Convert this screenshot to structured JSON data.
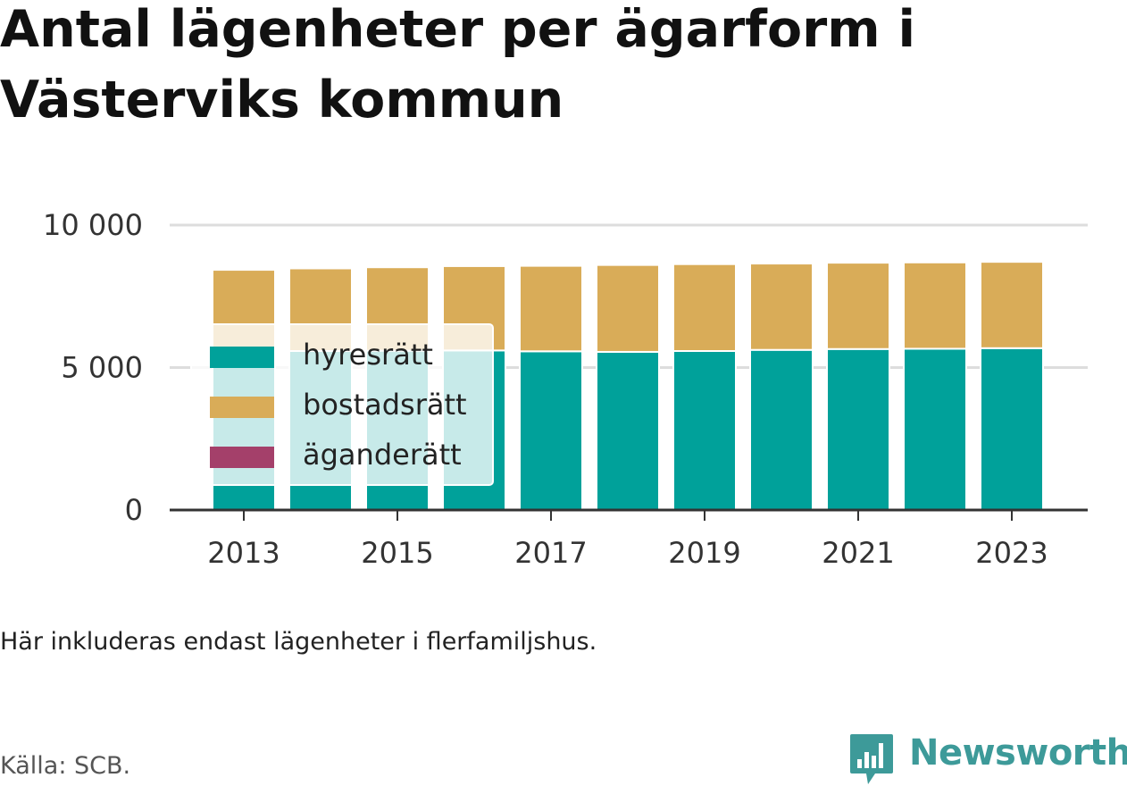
{
  "page": {
    "title": "Antal lägenheter per ägarform i Västerviks kommun",
    "note": "Här inkluderas endast lägenheter i flerfamiljshus.",
    "source": "Källa: SCB.",
    "brand": "Newsworthy"
  },
  "colors": {
    "hyresratt": "#00a19a",
    "bostadsratt": "#d9ac58",
    "aganderatt": "#a4406a",
    "grid": "#dddddd",
    "axis": "#333333",
    "brand": "#3d9a99"
  },
  "chart_data": {
    "type": "bar",
    "stacked": true,
    "title": "Antal lägenheter per ägarform i Västerviks kommun",
    "x": [
      2013,
      2014,
      2015,
      2016,
      2017,
      2018,
      2019,
      2020,
      2021,
      2022,
      2023
    ],
    "x_tick_labels": [
      "2013",
      "2015",
      "2017",
      "2019",
      "2021",
      "2023"
    ],
    "y_tick_labels": [
      "0",
      "5 000",
      "10 000"
    ],
    "y_ticks": [
      0,
      5000,
      10000
    ],
    "ylim": [
      0,
      10000
    ],
    "grid": true,
    "legend_position": "inside-left",
    "series": [
      {
        "name": "hyresrätt",
        "color": "#00a19a",
        "values": [
          5560,
          5580,
          5590,
          5600,
          5570,
          5550,
          5580,
          5620,
          5650,
          5660,
          5680
        ]
      },
      {
        "name": "bostadsrätt",
        "color": "#d9ac58",
        "values": [
          2870,
          2900,
          2930,
          2960,
          3000,
          3050,
          3050,
          3030,
          3030,
          3030,
          3030
        ]
      },
      {
        "name": "äganderätt",
        "color": "#a4406a",
        "values": [
          0,
          0,
          0,
          0,
          0,
          0,
          0,
          0,
          0,
          0,
          0
        ]
      }
    ]
  }
}
